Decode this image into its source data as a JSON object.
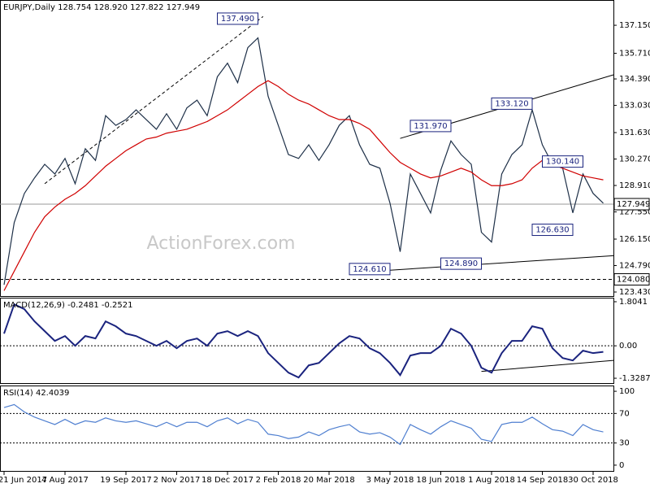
{
  "chart_data": [
    {
      "type": "line",
      "title": "EURJPY,Daily 128.754 128.920 127.822 127.949",
      "ylim": [
        123.18,
        138.45
      ],
      "yticks": [
        {
          "value": 137.15,
          "label": "137.150"
        },
        {
          "value": 135.71,
          "label": "135.710"
        },
        {
          "value": 134.39,
          "label": "134.390"
        },
        {
          "value": 133.03,
          "label": "133.030"
        },
        {
          "value": 131.63,
          "label": "131.630"
        },
        {
          "value": 130.27,
          "label": "130.270"
        },
        {
          "value": 128.91,
          "label": "128.910"
        },
        {
          "value": 127.55,
          "label": "127.550"
        },
        {
          "value": 126.15,
          "label": "126.150"
        },
        {
          "value": 124.79,
          "label": "124.790"
        },
        {
          "value": 123.43,
          "label": "123.430"
        }
      ],
      "series": [
        {
          "color": "#1e3048",
          "values": [
            123.8,
            127.0,
            128.5,
            129.3,
            130.0,
            129.5,
            130.3,
            129.0,
            130.8,
            130.2,
            132.5,
            132.0,
            132.3,
            132.8,
            132.3,
            131.8,
            132.6,
            131.8,
            132.9,
            133.3,
            132.5,
            134.5,
            135.2,
            134.2,
            136.0,
            136.5,
            133.5,
            132.0,
            130.5,
            130.3,
            131.0,
            130.2,
            131.0,
            132.0,
            132.5,
            131.0,
            130.0,
            129.8,
            128.0,
            125.5,
            129.5,
            128.5,
            127.5,
            129.7,
            131.2,
            130.5,
            130.0,
            126.5,
            126.0,
            129.5,
            130.5,
            131.0,
            132.8,
            131.0,
            130.0,
            129.8,
            127.5,
            129.5,
            128.5,
            128.0
          ]
        },
        {
          "color": "#d00000",
          "values": [
            123.5,
            124.5,
            125.5,
            126.5,
            127.3,
            127.8,
            128.2,
            128.5,
            128.9,
            129.4,
            129.9,
            130.3,
            130.7,
            131.0,
            131.3,
            131.4,
            131.6,
            131.7,
            131.8,
            132.0,
            132.2,
            132.5,
            132.8,
            133.2,
            133.6,
            134.0,
            134.3,
            134.0,
            133.6,
            133.3,
            133.1,
            132.8,
            132.5,
            132.3,
            132.3,
            132.1,
            131.8,
            131.2,
            130.6,
            130.1,
            129.8,
            129.5,
            129.3,
            129.4,
            129.6,
            129.8,
            129.6,
            129.2,
            128.9,
            128.9,
            129.0,
            129.2,
            129.8,
            130.2,
            130.0,
            129.8,
            129.6,
            129.4,
            129.3,
            129.2
          ]
        }
      ],
      "hlines": [
        {
          "value": 127.949,
          "style": "solid",
          "boxed": true
        },
        {
          "value": 124.08,
          "label": "124.080",
          "style": "dashed",
          "boxed": true
        }
      ],
      "annotations": [
        {
          "x": 21,
          "value": 137.49,
          "label": "137.490"
        },
        {
          "x": 40,
          "value": 131.97,
          "label": "131.970"
        },
        {
          "x": 48,
          "value": 133.12,
          "label": "133.120"
        },
        {
          "x": 53,
          "value": 130.14,
          "label": "130.140"
        },
        {
          "x": 52,
          "value": 126.63,
          "label": "126.630"
        },
        {
          "x": 34,
          "value": 124.61,
          "label": "124.610"
        },
        {
          "x": 43,
          "value": 124.89,
          "label": "124.890"
        }
      ],
      "trendlines": [
        {
          "x": [
            4,
            25.5
          ],
          "y": [
            129.0,
            137.6
          ],
          "style": "dashed"
        },
        {
          "x": [
            38,
            60
          ],
          "y": [
            124.55,
            125.3
          ],
          "style": "solid"
        },
        {
          "x": [
            39,
            60
          ],
          "y": [
            131.33,
            134.6
          ],
          "style": "solid"
        }
      ],
      "watermark": "ActionForex.com"
    },
    {
      "type": "line",
      "title": "MACD(12,26,9) -0.2481 -0.2521",
      "ylim": [
        -1.56,
        1.97
      ],
      "yticks": [
        1.8041,
        {
          "value": 0,
          "label": "0.00"
        },
        -1.3287
      ],
      "series": [
        {
          "color": "#1a237e",
          "values": [
            0.5,
            1.7,
            1.5,
            1.0,
            0.6,
            0.2,
            0.4,
            0.0,
            0.4,
            0.3,
            1.0,
            0.8,
            0.5,
            0.4,
            0.2,
            0.0,
            0.2,
            -0.1,
            0.2,
            0.3,
            0.0,
            0.5,
            0.6,
            0.4,
            0.6,
            0.4,
            -0.3,
            -0.7,
            -1.1,
            -1.3,
            -0.8,
            -0.7,
            -0.3,
            0.1,
            0.4,
            0.3,
            -0.1,
            -0.3,
            -0.7,
            -1.2,
            -0.4,
            -0.3,
            -0.3,
            0.0,
            0.7,
            0.5,
            0.0,
            -0.9,
            -1.1,
            -0.3,
            0.2,
            0.2,
            0.8,
            0.7,
            -0.1,
            -0.5,
            -0.6,
            -0.2,
            -0.3,
            -0.25
          ]
        }
      ],
      "hlines": [
        {
          "value": 0,
          "style": "dotted"
        }
      ],
      "trendlines": [
        {
          "x": [
            47,
            60
          ],
          "y": [
            -1.05,
            -0.6
          ],
          "style": "solid"
        }
      ]
    },
    {
      "type": "line",
      "title": "RSI(14) 42.4039",
      "ylim": [
        -8.9,
        107.8
      ],
      "yticks": [
        100,
        70,
        30,
        0
      ],
      "series": [
        {
          "color": "#4f7fd0",
          "values": [
            78,
            82,
            72,
            65,
            60,
            55,
            62,
            55,
            60,
            58,
            64,
            60,
            58,
            60,
            56,
            52,
            58,
            52,
            58,
            58,
            52,
            60,
            64,
            56,
            62,
            58,
            42,
            40,
            36,
            38,
            45,
            40,
            48,
            52,
            55,
            45,
            42,
            44,
            38,
            28,
            55,
            48,
            42,
            52,
            60,
            55,
            50,
            35,
            32,
            55,
            58,
            58,
            65,
            56,
            48,
            46,
            40,
            55,
            48,
            45
          ]
        }
      ],
      "hlines": [
        {
          "value": 70,
          "style": "dotted"
        },
        {
          "value": 30,
          "style": "dotted"
        }
      ],
      "categories": [
        "21 Jun 2017",
        null,
        null,
        null,
        null,
        null,
        "4 Aug 2017",
        null,
        null,
        null,
        null,
        null,
        "19 Sep 2017",
        null,
        null,
        null,
        null,
        "2 Nov 2017",
        null,
        null,
        null,
        null,
        "18 Dec 2017",
        null,
        null,
        null,
        null,
        "2 Feb 2018",
        null,
        null,
        null,
        null,
        "20 Mar 2018",
        null,
        null,
        null,
        null,
        null,
        "3 May 2018",
        null,
        null,
        null,
        null,
        "18 Jun 2018",
        null,
        null,
        null,
        null,
        "1 Aug 2018",
        null,
        null,
        null,
        null,
        "14 Sep 2018",
        null,
        null,
        null,
        null,
        "30 Oct 2018",
        null
      ]
    }
  ]
}
